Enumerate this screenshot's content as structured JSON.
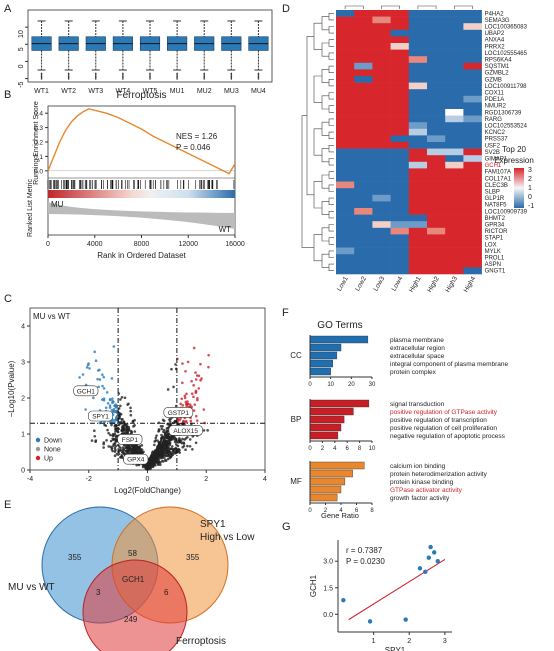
{
  "panels": {
    "A": "A",
    "B": "B",
    "C": "C",
    "D": "D",
    "E": "E",
    "F": "F",
    "G": "G"
  },
  "panel_a": {
    "categories": [
      "WT1",
      "WT2",
      "WT3",
      "WT4",
      "WT5",
      "MU1",
      "MU2",
      "MU3",
      "MU4"
    ],
    "yticks": [
      -5,
      0,
      5,
      10
    ],
    "ylim": [
      -6,
      15
    ],
    "box": {
      "whisker_low": -2.5,
      "q1": 3.2,
      "median": 5.2,
      "q3": 7.2,
      "whisker_high": 11.8
    },
    "color": "#2a7ab8"
  },
  "panel_b": {
    "title": "Ferroptosis",
    "ylabel_top": "Running Enrichment Score",
    "ylabel_bottom": "Ranked List Metric",
    "xlabel": "Rank in Ordered Dataset",
    "nes": "NES = 1.26",
    "p": "P = 0.046",
    "mu_label": "MU",
    "wt_label": "WT",
    "xticks": [
      0,
      4000,
      8000,
      12000,
      16000
    ],
    "es_yticks": [
      "0.0",
      "0.1",
      "0.2",
      "0.3",
      "0.4"
    ],
    "es_curve": [
      [
        0,
        0
      ],
      [
        500,
        0.1
      ],
      [
        1000,
        0.2
      ],
      [
        1500,
        0.28
      ],
      [
        2000,
        0.34
      ],
      [
        2500,
        0.38
      ],
      [
        3000,
        0.41
      ],
      [
        3500,
        0.43
      ],
      [
        4000,
        0.42
      ],
      [
        5000,
        0.4
      ],
      [
        6000,
        0.37
      ],
      [
        7000,
        0.33
      ],
      [
        8000,
        0.29
      ],
      [
        9000,
        0.24
      ],
      [
        10000,
        0.2
      ],
      [
        11000,
        0.16
      ],
      [
        12000,
        0.12
      ],
      [
        13000,
        0.08
      ],
      [
        14000,
        0.04
      ],
      [
        15000,
        0.0
      ],
      [
        15500,
        -0.02
      ],
      [
        16000,
        0.05
      ]
    ],
    "curve_color": "#e8872e"
  },
  "panel_c": {
    "title": "MU vs WT",
    "xlabel": "Log2(FoldChange)",
    "ylabel": "−Log10(Pvalue)",
    "xticks": [
      -4,
      -2,
      0,
      2,
      4
    ],
    "yticks": [
      0,
      1,
      2,
      3,
      4
    ],
    "legend": [
      {
        "label": "Down",
        "color": "#2a7ab8"
      },
      {
        "label": "None",
        "color": "#999999"
      },
      {
        "label": "Up",
        "color": "#d1232a"
      }
    ],
    "genes": [
      {
        "name": "GCH1",
        "x": -2.1,
        "y": 2.2
      },
      {
        "name": "SPY1",
        "x": -1.6,
        "y": 1.5
      },
      {
        "name": "FSP1",
        "x": -0.6,
        "y": 0.85
      },
      {
        "name": "GPX4",
        "x": -0.4,
        "y": 0.3
      },
      {
        "name": "GSTP1",
        "x": 1.05,
        "y": 1.6
      },
      {
        "name": "ALOX15",
        "x": 1.3,
        "y": 1.1
      }
    ]
  },
  "panel_d": {
    "columns": [
      "Low1",
      "Low2",
      "Low3",
      "Low4",
      "High1",
      "High2",
      "High3",
      "High4"
    ],
    "genes": [
      "P4HA2",
      "SEMA3G",
      "LOC100365083",
      "UBAP2",
      "ANXA4",
      "PRRX2",
      "LOC102555465",
      "RPS6KA4",
      "SQSTM1",
      "GZMBL2",
      "GZMB",
      "LOC100911798",
      "COX11",
      "PDE1A",
      "NMUR2",
      "RGD1306739",
      "RARG",
      "LOC102553524",
      "KCNC2",
      "PRSS37",
      "USF2",
      "SV2B",
      "GIMAP1",
      "GCH1",
      "FAM107A",
      "COL17A1",
      "CLEC3B",
      "SLBP",
      "GLP1R",
      "NAT8F5",
      "LOC100909739",
      "BHMT2",
      "GPR34",
      "RICTOR",
      "STAP1",
      "LOX",
      "MYLK",
      "PROL1",
      "ASPN",
      "GNGT1"
    ],
    "highlight_gene": "GCH1",
    "legend_title_1": "Top 20",
    "legend_title_2": "Expression",
    "legend_ticks": [
      "3",
      "2",
      "1",
      "0",
      "-1"
    ]
  },
  "panel_e": {
    "sets": [
      {
        "label": "MU vs WT"
      },
      {
        "label": "SPY1",
        "label2": "High vs Low"
      },
      {
        "label": "Ferroptosis"
      }
    ],
    "counts": {
      "mu_only": "355",
      "spy1_only": "355",
      "ferro_only": "249",
      "mu_spy1": "58",
      "mu_ferro": "3",
      "spy1_ferro": "6",
      "center": "GCH1"
    },
    "colors": {
      "mu": "#3a8fd0",
      "spy1": "#f0943a",
      "ferro": "#e03a3a"
    }
  },
  "panel_f": {
    "title": "GO Terms",
    "xlabel": "Gene Ratio",
    "groups": [
      {
        "name": "CC",
        "color": "#1f6fb0",
        "xmax": 30,
        "xticks": [
          0,
          10,
          20,
          30
        ],
        "terms": [
          {
            "label": "plasma membrane",
            "value": 28,
            "hl": false
          },
          {
            "label": "extracellular region",
            "value": 15,
            "hl": false
          },
          {
            "label": "extracellular space",
            "value": 13,
            "hl": false
          },
          {
            "label": "integral component of plasma membrane",
            "value": 11,
            "hl": false
          },
          {
            "label": "protein complex",
            "value": 10,
            "hl": false
          }
        ]
      },
      {
        "name": "BP",
        "color": "#c81e25",
        "xmax": 10,
        "xticks": [
          0,
          2,
          4,
          6,
          8,
          10
        ],
        "terms": [
          {
            "label": "signal transduction",
            "value": 9.5,
            "hl": false
          },
          {
            "label": "positive regulation of GTPase activity",
            "value": 7,
            "hl": true
          },
          {
            "label": "positive regulation of transcription",
            "value": 5.5,
            "hl": false
          },
          {
            "label": "positive regulation of cell proliferation",
            "value": 5,
            "hl": false
          },
          {
            "label": "negative regulation of apoptotic process",
            "value": 4.5,
            "hl": false
          }
        ]
      },
      {
        "name": "MF",
        "color": "#e8872e",
        "xmax": 8,
        "xticks": [
          0,
          2,
          4,
          6,
          8
        ],
        "terms": [
          {
            "label": "calcium ion binding",
            "value": 7,
            "hl": false
          },
          {
            "label": "protein heterodimerization activity",
            "value": 5.5,
            "hl": false
          },
          {
            "label": "protein kinase binding",
            "value": 4.5,
            "hl": false
          },
          {
            "label": "GTPase activator activity",
            "value": 4,
            "hl": true
          },
          {
            "label": "growth factor activity",
            "value": 3.5,
            "hl": false
          }
        ]
      }
    ],
    "highlight_color": "#d1232a"
  },
  "panel_g": {
    "xlabel": "SPY1",
    "ylabel": "GCH1",
    "r": "r = 0.7387",
    "p": "P = 0.0230",
    "yticks": [
      "0.0",
      "1.5",
      "3.0"
    ],
    "xticks": [
      "1",
      "2",
      "3"
    ],
    "xlim": [
      0,
      3.2
    ],
    "ylim": [
      -1,
      4.2
    ],
    "points": [
      [
        0.15,
        0.8
      ],
      [
        0.9,
        -0.4
      ],
      [
        1.9,
        -0.3
      ],
      [
        2.3,
        2.6
      ],
      [
        2.45,
        2.4
      ],
      [
        2.55,
        3.2
      ],
      [
        2.6,
        3.8
      ],
      [
        2.7,
        3.5
      ],
      [
        2.8,
        3.0
      ]
    ],
    "fit": [
      [
        0.3,
        -0.3
      ],
      [
        3.0,
        3.1
      ]
    ],
    "point_color": "#2a7ab8",
    "line_color": "#d1232a"
  },
  "chart_data": []
}
